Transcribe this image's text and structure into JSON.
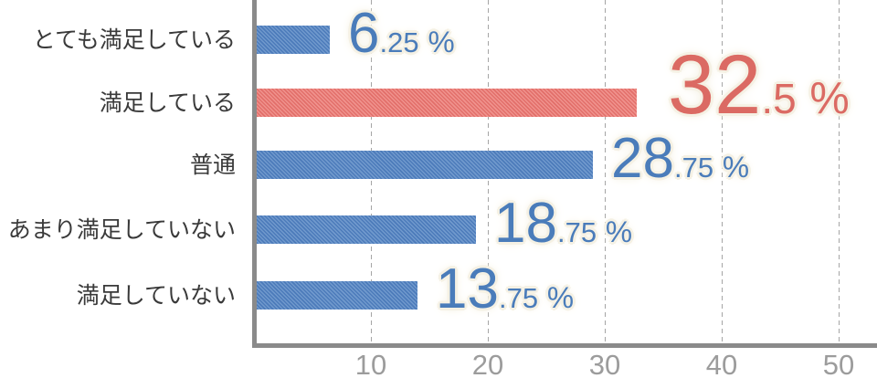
{
  "chart_data": {
    "type": "bar",
    "orientation": "horizontal",
    "categories": [
      "とても満足している",
      "満足している",
      "普通",
      "あまり満足していない",
      "満足していない"
    ],
    "values": [
      6.25,
      32.5,
      28.75,
      18.75,
      13.75
    ],
    "unit": "%",
    "highlighted_index": 1,
    "xlabel": "",
    "ylabel": "",
    "xticks": [
      10,
      20,
      30,
      40,
      50
    ],
    "xlim": [
      0,
      53
    ],
    "grid": "vertical-dashed",
    "legend": "none"
  },
  "colors": {
    "bar_blue_dark": "#4c7bba",
    "bar_blue_light": "#7099cd",
    "bar_red_dark": "#e26f6a",
    "bar_red_light": "#f0928d",
    "value_blue": "#4a7cba",
    "value_red": "#db6a63",
    "label_text": "#3a3a3a",
    "tick_text": "#9c9c9c",
    "axis_line": "#8a8a8a",
    "gridline": "#a5a5a5",
    "halo": "#f5f1e4",
    "background": "#ffffff"
  }
}
